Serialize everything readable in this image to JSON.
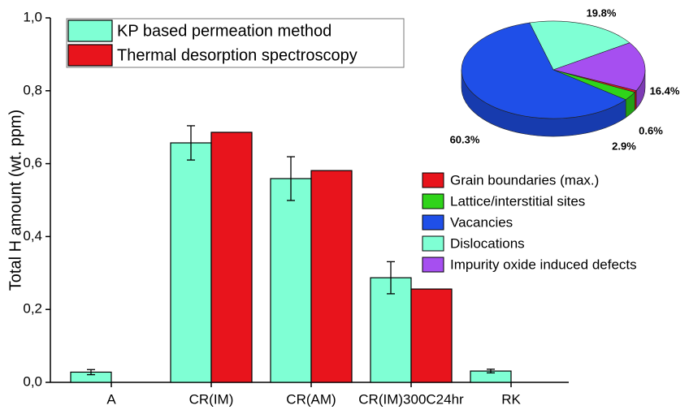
{
  "chart_data": [
    {
      "type": "bar",
      "ylabel": "Total H amount (wt. ppm)",
      "categories": [
        "A",
        "CR(IM)",
        "CR(AM)",
        "CR(IM)300C24hr",
        "RK"
      ],
      "series": [
        {
          "name": "KP based permeation method",
          "color": "#7fffd4",
          "values": [
            0.028,
            0.657,
            0.559,
            0.287,
            0.031
          ],
          "errors": [
            0.007,
            0.047,
            0.06,
            0.044,
            0.005
          ]
        },
        {
          "name": "Thermal desorption spectroscopy",
          "color": "#e8141c",
          "values": [
            null,
            0.686,
            0.581,
            0.256,
            null
          ]
        }
      ],
      "ylim": [
        0,
        1
      ],
      "yticks": [
        {
          "value": 0,
          "label": "0,0"
        },
        {
          "value": 0.2,
          "label": "0,2"
        },
        {
          "value": 0.4,
          "label": "0,4"
        },
        {
          "value": 0.6,
          "label": "0,6"
        },
        {
          "value": 0.8,
          "label": "0,8"
        },
        {
          "value": 1,
          "label": "1,0"
        }
      ],
      "legend": "upper left"
    },
    {
      "type": "pie",
      "labels": [
        "Grain boundaries (max.)",
        "Lattice/interstitial sites",
        "Vacancies",
        "Dislocations",
        "Impurity oxide induced defects"
      ],
      "values": [
        0.6,
        2.9,
        60.3,
        19.8,
        16.4
      ],
      "value_labels": [
        "0.6%",
        "2.9%",
        "60.3%",
        "19.8%",
        "16.4%"
      ],
      "colors": [
        "#e8141c",
        "#2fd41a",
        "#1f4fe8",
        "#7fffd4",
        "#a64ff0"
      ],
      "legend": "lower left"
    }
  ]
}
